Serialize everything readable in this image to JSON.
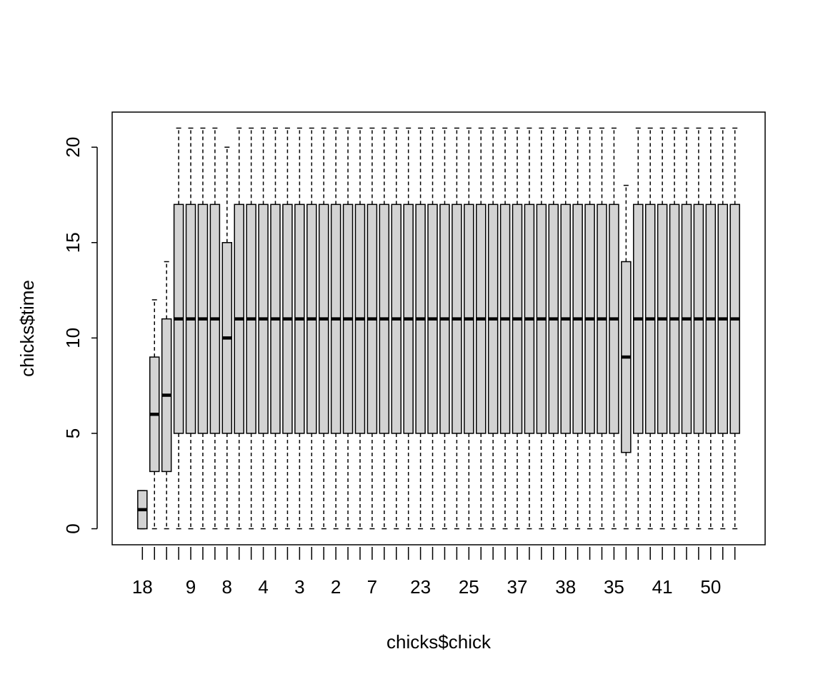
{
  "chart_data": {
    "type": "box",
    "x_label": "chicks$chick",
    "y_label": "chicks$time",
    "categories": [
      "18",
      null,
      null,
      null,
      "9",
      null,
      null,
      "8",
      null,
      null,
      "4",
      null,
      null,
      "3",
      null,
      null,
      "2",
      null,
      null,
      "7",
      null,
      null,
      null,
      "23",
      null,
      null,
      null,
      "25",
      null,
      null,
      null,
      "37",
      null,
      null,
      null,
      "38",
      null,
      null,
      null,
      "35",
      null,
      null,
      null,
      "41",
      null,
      null,
      null,
      "50",
      null,
      null
    ],
    "min": [
      0,
      0,
      0,
      0,
      0,
      0,
      0,
      0,
      0,
      0,
      0,
      0,
      0,
      0,
      0,
      0,
      0,
      0,
      0,
      0,
      0,
      0,
      0,
      0,
      0,
      0,
      0,
      0,
      0,
      0,
      0,
      0,
      0,
      0,
      0,
      0,
      0,
      0,
      0,
      0,
      0,
      0,
      0,
      0,
      0,
      0,
      0,
      0,
      0,
      0
    ],
    "q1": [
      0,
      3,
      3,
      5,
      5,
      5,
      5,
      5,
      5,
      5,
      5,
      5,
      5,
      5,
      5,
      5,
      5,
      5,
      5,
      5,
      5,
      5,
      5,
      5,
      5,
      5,
      5,
      5,
      5,
      5,
      5,
      5,
      5,
      5,
      5,
      5,
      5,
      5,
      5,
      5,
      4,
      5,
      5,
      5,
      5,
      5,
      5,
      5,
      5,
      5
    ],
    "median": [
      1,
      6,
      7,
      11,
      11,
      11,
      11,
      10,
      11,
      11,
      11,
      11,
      11,
      11,
      11,
      11,
      11,
      11,
      11,
      11,
      11,
      11,
      11,
      11,
      11,
      11,
      11,
      11,
      11,
      11,
      11,
      11,
      11,
      11,
      11,
      11,
      11,
      11,
      11,
      11,
      9,
      11,
      11,
      11,
      11,
      11,
      11,
      11,
      11,
      11
    ],
    "q3": [
      2,
      9,
      11,
      17,
      17,
      17,
      17,
      15,
      17,
      17,
      17,
      17,
      17,
      17,
      17,
      17,
      17,
      17,
      17,
      17,
      17,
      17,
      17,
      17,
      17,
      17,
      17,
      17,
      17,
      17,
      17,
      17,
      17,
      17,
      17,
      17,
      17,
      17,
      17,
      17,
      14,
      17,
      17,
      17,
      17,
      17,
      17,
      17,
      17,
      17
    ],
    "max": [
      2,
      12,
      14,
      21,
      21,
      21,
      21,
      20,
      21,
      21,
      21,
      21,
      21,
      21,
      21,
      21,
      21,
      21,
      21,
      21,
      21,
      21,
      21,
      21,
      21,
      21,
      21,
      21,
      21,
      21,
      21,
      21,
      21,
      21,
      21,
      21,
      21,
      21,
      21,
      21,
      18,
      21,
      21,
      21,
      21,
      21,
      21,
      21,
      21,
      21
    ],
    "color": "#d3d3d3",
    "ylim": [
      -0.84,
      21.84
    ],
    "yticks": [
      0,
      5,
      10,
      15,
      20
    ]
  }
}
